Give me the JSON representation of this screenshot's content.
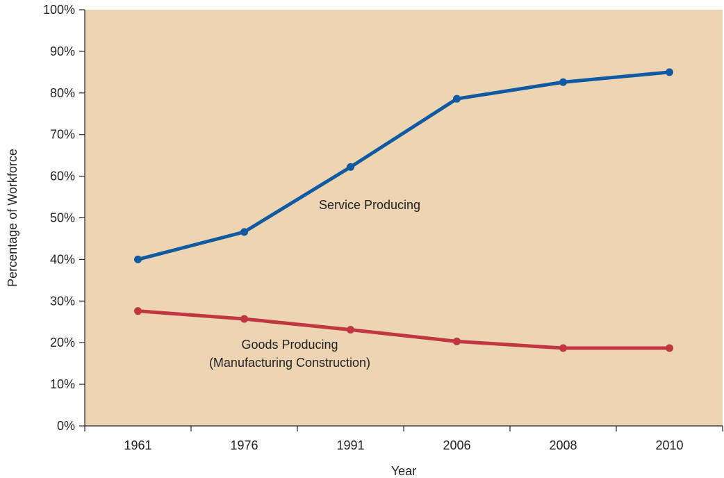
{
  "chart_data": {
    "type": "line",
    "title": "",
    "xlabel": "Year",
    "ylabel": "Percentage of Workforce",
    "categories": [
      "1961",
      "1976",
      "1991",
      "2006",
      "2008",
      "2010"
    ],
    "ylim": [
      0,
      100
    ],
    "yticks": [
      0,
      10,
      20,
      30,
      40,
      50,
      60,
      70,
      80,
      90,
      100
    ],
    "ytick_suffix": "%",
    "grid": false,
    "series": [
      {
        "values": [
          40,
          46.6,
          62.2,
          78.6,
          82.6,
          85
        ],
        "color": "#0f5aa3"
      },
      {
        "values": [
          27.6,
          25.7,
          23.1,
          20.3,
          18.7,
          18.7
        ],
        "color": "#c0373f"
      }
    ],
    "annotations": [
      {
        "text": "Service Producing"
      },
      {
        "text": "Goods Producing"
      },
      {
        "text": "(Manufacturing Construction)"
      }
    ],
    "colors": {
      "plot_background": "#edd4b2",
      "axis": "#222222"
    }
  }
}
